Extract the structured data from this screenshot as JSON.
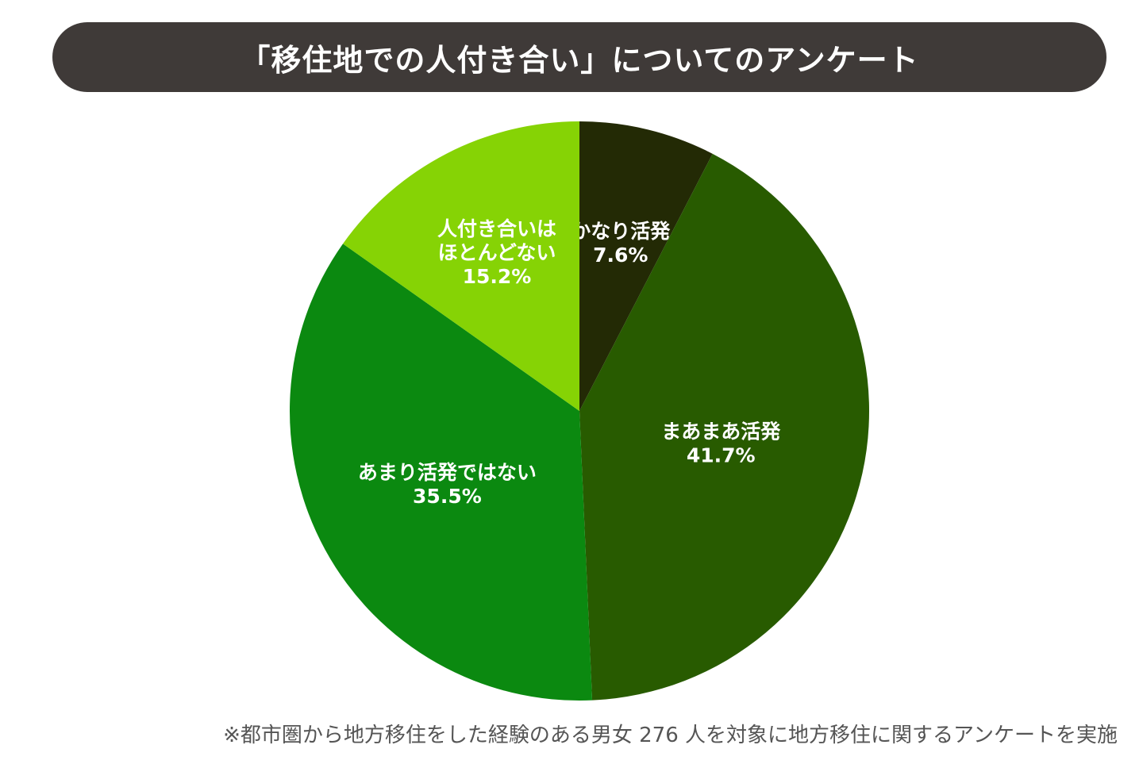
{
  "header": {
    "title": "「移住地での人付き合い」についてのアンケート"
  },
  "chart_data": {
    "type": "pie",
    "title": "「移住地での人付き合い」についてのアンケート",
    "slices": [
      {
        "label_lines": [
          "かなり活発"
        ],
        "value": 7.6,
        "display": "7.6%",
        "color": "#232a05"
      },
      {
        "label_lines": [
          "まあまあ活発"
        ],
        "value": 41.7,
        "display": "41.7%",
        "color": "#285b00"
      },
      {
        "label_lines": [
          "あまり活発ではない"
        ],
        "value": 35.5,
        "display": "35.5%",
        "color": "#0b8910"
      },
      {
        "label_lines": [
          "人付き合いは",
          "ほとんどない"
        ],
        "value": 15.2,
        "display": "15.2%",
        "color": "#86d305"
      }
    ],
    "start": "12 o'clock",
    "direction": "clockwise",
    "legend": "none",
    "label_color": "#ffffff"
  },
  "footnote": "※都市圏から地方移住をした経験のある男女 276 人を対象に地方移住に関するアンケートを実施"
}
